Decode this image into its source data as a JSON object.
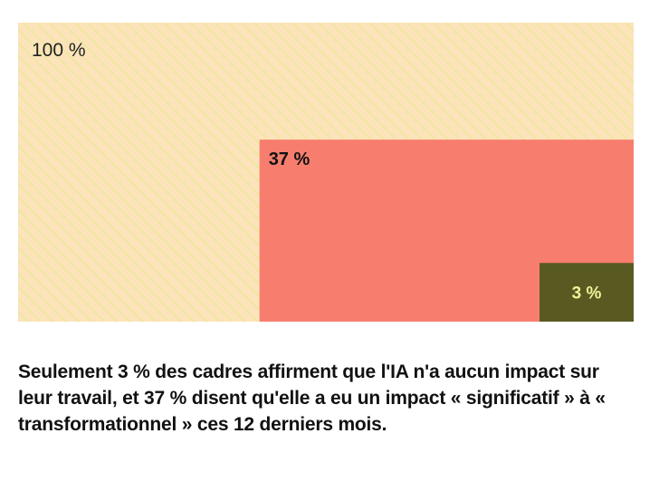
{
  "chart_data": {
    "type": "nested-area",
    "title": "",
    "series": [
      {
        "label": "100 %",
        "value": 100,
        "color": "#FCE3BA",
        "stripe": "#E6EA92",
        "text_color": "#222222"
      },
      {
        "label": "37 %",
        "value": 37,
        "color": "#F77E6E",
        "text_color": "#111111"
      },
      {
        "label": "3 %",
        "value": 3,
        "color": "#595A22",
        "text_color": "#F1F39A"
      }
    ]
  },
  "caption": "Seulement 3 % des cadres affirment que l'IA n'a aucun impact sur leur travail, et 37 %  disent qu'elle a eu un impact « significatif » à « transformationnel » ces 12 derniers mois."
}
